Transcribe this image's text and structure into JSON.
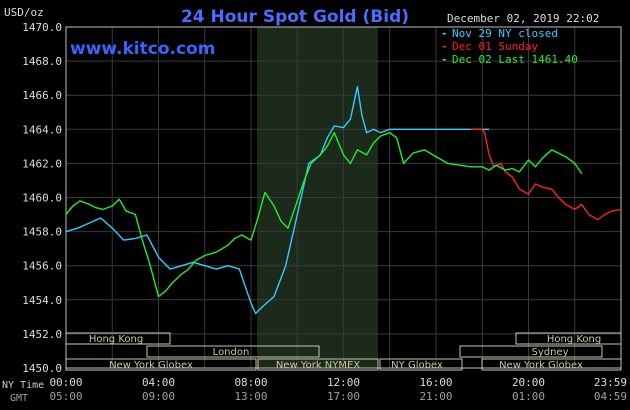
{
  "chart_data": {
    "type": "line",
    "title": "24 Hour Spot Gold (Bid)",
    "watermark": "www.kitco.com",
    "ylabel": "USD/oz",
    "timestamp": "December 02, 2019 22:02",
    "ylim": [
      1450,
      1470
    ],
    "yticks": [
      "1470.0",
      "1468.0",
      "1466.0",
      "1464.0",
      "1462.0",
      "1460.0",
      "1458.0",
      "1456.0",
      "1454.0",
      "1452.0",
      "1450.0"
    ],
    "x_axis_rows": [
      {
        "label": "NY Time",
        "ticks": [
          "00:00",
          "04:00",
          "08:00",
          "12:00",
          "16:00",
          "20:00",
          "23:59"
        ]
      },
      {
        "label": "GMT",
        "ticks": [
          "05:00",
          "09:00",
          "13:00",
          "17:00",
          "21:00",
          "01:00",
          "04:59"
        ]
      }
    ],
    "legend": [
      {
        "text": "Nov 29 NY closed",
        "color": "#33ccff"
      },
      {
        "text": "Dec 01 Sunday",
        "color": "#ff2020"
      },
      {
        "text": "Dec 02 Last 1461.40",
        "color": "#22ee22"
      }
    ],
    "sessions": [
      "Hong Kong",
      "London",
      "New York Globex",
      "New York NYMEX",
      "NY Globex",
      "Hong Kong",
      "Sydney",
      "New York Globex"
    ],
    "series": [
      {
        "color": "#33ccff",
        "x": [
          0,
          0.5,
          1,
          1.5,
          2,
          2.5,
          3,
          3.5,
          4,
          4.5,
          5,
          5.5,
          6,
          6.5,
          7,
          7.5,
          8,
          8.2,
          8.5,
          9,
          9.5,
          10,
          10.5,
          11,
          11.3,
          11.6,
          12,
          12.3,
          12.6,
          12.8,
          13,
          13.3,
          13.6,
          14,
          14.5,
          15,
          15.5,
          16,
          16.5,
          17,
          17.5,
          18.3
        ],
        "y": [
          1458,
          1458.2,
          1458.5,
          1458.8,
          1458.2,
          1457.5,
          1457.6,
          1457.8,
          1456.5,
          1455.8,
          1456,
          1456.2,
          1456,
          1455.8,
          1456,
          1455.8,
          1453.8,
          1453.2,
          1453.6,
          1454.2,
          1456,
          1459,
          1462,
          1462.5,
          1463.5,
          1464.2,
          1464.1,
          1464.6,
          1466.5,
          1464.8,
          1463.8,
          1464,
          1463.8,
          1464,
          1464,
          1464,
          1464,
          1464,
          1464,
          1464,
          1464,
          1464
        ]
      },
      {
        "color": "#ff2020",
        "x": [
          17.5,
          18,
          18.1,
          18.3,
          18.5,
          18.8,
          19,
          19.3,
          19.6,
          20,
          20.3,
          20.6,
          21,
          21.3,
          21.6,
          22,
          22.3,
          22.6,
          23,
          23.3,
          23.6,
          24
        ],
        "y": [
          1464,
          1464,
          1463.8,
          1462.5,
          1461.8,
          1462,
          1461.5,
          1461.2,
          1460.5,
          1460.2,
          1460.8,
          1460.6,
          1460.5,
          1460,
          1459.6,
          1459.3,
          1459.6,
          1459,
          1458.7,
          1459,
          1459.2,
          1459.3
        ]
      },
      {
        "color": "#22ee22",
        "x": [
          0,
          0.3,
          0.6,
          1,
          1.3,
          1.6,
          2,
          2.3,
          2.6,
          3,
          3.3,
          3.6,
          4,
          4.3,
          4.6,
          5,
          5.3,
          5.6,
          6,
          6.5,
          7,
          7.3,
          7.6,
          8,
          8.3,
          8.6,
          9,
          9.3,
          9.6,
          10,
          10.3,
          10.6,
          11,
          11.3,
          11.6,
          12,
          12.3,
          12.6,
          13,
          13.3,
          13.6,
          14,
          14.3,
          14.6,
          15,
          15.5,
          16,
          16.5,
          17,
          17.5,
          18,
          18.3,
          18.6,
          19,
          19.3,
          19.6,
          20,
          20.3,
          20.6,
          21,
          21.3,
          21.6,
          22,
          22.3
        ],
        "y": [
          1459,
          1459.5,
          1459.8,
          1459.6,
          1459.4,
          1459.3,
          1459.5,
          1459.9,
          1459.2,
          1459,
          1457.5,
          1456.2,
          1454.2,
          1454.5,
          1455,
          1455.5,
          1455.8,
          1456.3,
          1456.6,
          1456.8,
          1457.2,
          1457.6,
          1457.8,
          1457.5,
          1458.8,
          1460.3,
          1459.5,
          1458.6,
          1458.2,
          1459.8,
          1461,
          1462,
          1462.5,
          1463,
          1463.8,
          1462.5,
          1462,
          1462.8,
          1462.5,
          1463.2,
          1463.6,
          1463.8,
          1463.5,
          1462,
          1462.6,
          1462.8,
          1462.4,
          1462,
          1461.9,
          1461.8,
          1461.8,
          1461.6,
          1461.9,
          1461.6,
          1461.7,
          1461.5,
          1462.2,
          1461.8,
          1462.3,
          1462.8,
          1462.6,
          1462.4,
          1462,
          1461.4
        ]
      }
    ]
  }
}
